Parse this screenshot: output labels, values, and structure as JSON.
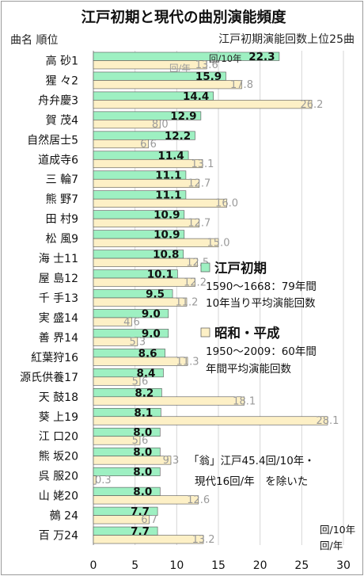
{
  "chart_data": {
    "type": "bar",
    "orientation": "horizontal",
    "title": "江戸初期と現代の曲別演能頻度",
    "subtitle": "江戸初期演能回数上位25曲",
    "header_label": "曲名 順位",
    "categories": [
      "高 砂1",
      "猩 々2",
      "舟弁慶3",
      "賀 茂4",
      "自然居士5",
      "道成寺6",
      "三 輪7",
      "熊 野7",
      "田 村9",
      "松 風9",
      "海 士11",
      "屋 島12",
      "千 手13",
      "実 盛14",
      "善 界14",
      "紅葉狩16",
      "源氏供養17",
      "天 鼓18",
      "葵 上19",
      "江 口20",
      "熊 坂20",
      "呉 服20",
      "山 姥20",
      "鵺 24",
      "百 万24"
    ],
    "series": [
      {
        "name": "江戸初期",
        "color": "#9ef0c2",
        "values": [
          22.3,
          15.9,
          14.4,
          12.9,
          12.2,
          11.4,
          11.1,
          11.1,
          10.9,
          10.9,
          10.8,
          10.1,
          9.5,
          9.0,
          9.0,
          8.6,
          8.4,
          8.2,
          8.1,
          8.0,
          8.0,
          8.0,
          8.0,
          7.7,
          7.7
        ]
      },
      {
        "name": "昭和・平成",
        "color": "#fdf0c6",
        "values": [
          13.6,
          17.8,
          26.2,
          8.0,
          6.6,
          13.1,
          12.7,
          16.0,
          12.7,
          15.0,
          12.5,
          12.2,
          11.2,
          4.6,
          5.3,
          11.3,
          5.6,
          18.1,
          28.1,
          5.6,
          9.3,
          0.3,
          12.6,
          6.7,
          13.2
        ]
      }
    ],
    "xlim": [
      0,
      30
    ],
    "xticks": [
      0,
      5,
      10,
      15,
      20,
      25,
      30
    ],
    "unit_labels": {
      "edo_unit": "回/10年",
      "modern_unit": "回/年"
    },
    "first_bar_annotation": "回/10年",
    "first_bar_annotation2": "回/年",
    "legend": {
      "edo": {
        "label": "江戸初期",
        "line1": "1590～1668：79年間",
        "line2": "10年当り平均演能回数"
      },
      "modern": {
        "label": "昭和・平成",
        "line1": "1950～2009：60年間",
        "line2": "年間平均演能回数"
      }
    },
    "note": {
      "line1": "「翁」江戸45.4回/10年・",
      "line2": "現代16回/年　を除いた"
    }
  }
}
